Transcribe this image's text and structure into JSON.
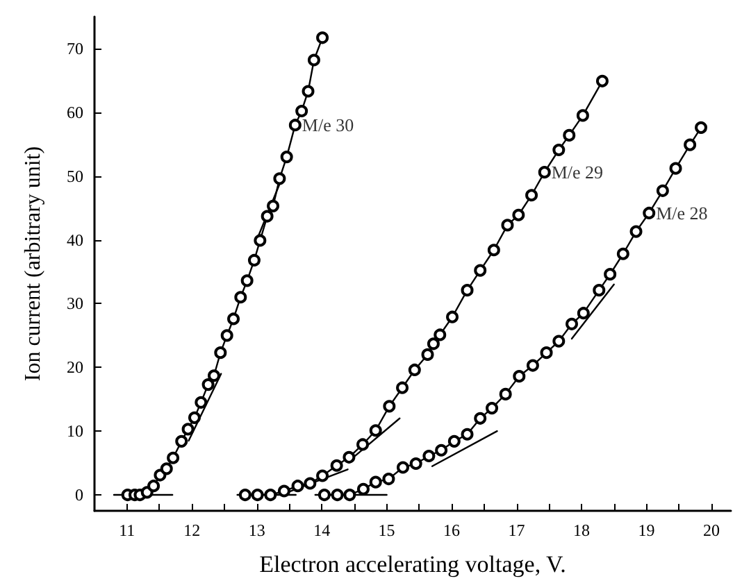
{
  "chart_data": {
    "type": "line",
    "xlabel": "Electron accelerating voltage, V.",
    "ylabel": "Ion current (arbitrary unit)",
    "xlim": [
      10.5,
      20.3
    ],
    "ylim": [
      -2.5,
      75
    ],
    "xticks": [
      11,
      {
        "value": 11.5,
        "label": null
      },
      12,
      {
        "value": 12.5,
        "label": null
      },
      13,
      {
        "value": 13.5,
        "label": null
      },
      14,
      {
        "value": 14.5,
        "label": null
      },
      15,
      {
        "value": 15.5,
        "label": null
      },
      16,
      {
        "value": 16.5,
        "label": null
      },
      17,
      {
        "value": 17.5,
        "label": null
      },
      18,
      {
        "value": 18.5,
        "label": null
      },
      19,
      {
        "value": 19.5,
        "label": null
      },
      20
    ],
    "yticks": [
      0,
      10,
      20,
      30,
      40,
      50,
      60,
      70
    ],
    "grid": false,
    "marker": "circle",
    "line_style": "solid",
    "series": [
      {
        "color": "#000000",
        "x": [
          11.01,
          11.12,
          11.2,
          11.31,
          11.41,
          11.51,
          11.61,
          11.71,
          11.84,
          11.94,
          12.04,
          12.14,
          12.25,
          12.34,
          12.44,
          12.54,
          12.64,
          12.75,
          12.85,
          12.96,
          13.05,
          13.16,
          13.25,
          13.35,
          13.46,
          13.59,
          13.69,
          13.79,
          13.88,
          14.01
        ],
        "values": [
          0,
          0,
          0,
          0.4,
          1.4,
          3.1,
          4.1,
          5.8,
          8.4,
          10.3,
          12.1,
          14.5,
          17.3,
          18.7,
          22.3,
          25.0,
          27.6,
          31.0,
          33.6,
          36.8,
          39.9,
          43.7,
          45.3,
          49.6,
          53.0,
          58.0,
          60.2,
          63.3,
          68.2,
          71.7
        ]
      },
      {
        "color": "#000000",
        "x": [
          12.82,
          13.01,
          13.21,
          13.42,
          13.63,
          13.82,
          14.01,
          14.23,
          14.42,
          14.63,
          14.83,
          15.04,
          15.24,
          15.43,
          15.63,
          15.72,
          15.82,
          16.01,
          16.24,
          16.44,
          16.65,
          16.86,
          17.03,
          17.23,
          17.43,
          17.65,
          17.81,
          18.02,
          18.32
        ],
        "values": [
          0,
          0,
          0,
          0.6,
          1.4,
          1.8,
          3.0,
          4.6,
          5.9,
          7.9,
          10.1,
          13.9,
          16.8,
          19.6,
          22.0,
          23.7,
          25.1,
          27.9,
          32.1,
          35.2,
          38.4,
          42.3,
          43.9,
          47.0,
          50.6,
          54.1,
          56.4,
          59.5,
          64.9
        ]
      },
      {
        "color": "#000000",
        "x": [
          14.04,
          14.24,
          14.43,
          14.64,
          14.83,
          15.03,
          15.25,
          15.45,
          15.65,
          15.84,
          16.04,
          16.24,
          16.44,
          16.62,
          16.83,
          17.04,
          17.25,
          17.46,
          17.65,
          17.85,
          18.03,
          18.27,
          18.44,
          18.64,
          18.84,
          19.04,
          19.25,
          19.45,
          19.67,
          19.84
        ],
        "values": [
          0,
          0,
          0,
          0.9,
          2.0,
          2.5,
          4.3,
          4.9,
          6.1,
          7.0,
          8.4,
          9.5,
          12.0,
          13.6,
          15.8,
          18.6,
          20.3,
          22.3,
          24.1,
          26.8,
          28.5,
          32.1,
          34.6,
          37.8,
          41.3,
          44.2,
          47.7,
          51.2,
          54.9,
          57.6
        ]
      },
      {
        "color": "#000000",
        "marker": "none",
        "x": [
          10.8,
          11.7
        ],
        "values": [
          0,
          0
        ]
      },
      {
        "color": "#000000",
        "marker": "none",
        "x": [
          11.95,
          12.45
        ],
        "values": [
          8.5,
          19
        ]
      },
      {
        "color": "#000000",
        "marker": "none",
        "x": [
          13.0,
          13.4
        ],
        "values": [
          40,
          50
        ]
      },
      {
        "color": "#000000",
        "marker": "none",
        "x": [
          12.7,
          13.6
        ],
        "values": [
          0,
          0
        ]
      },
      {
        "color": "#000000",
        "marker": "none",
        "x": [
          13.5,
          14.4
        ],
        "values": [
          0.5,
          4
        ]
      },
      {
        "color": "#000000",
        "marker": "none",
        "x": [
          14.5,
          15.2
        ],
        "values": [
          6,
          12
        ]
      },
      {
        "color": "#000000",
        "marker": "none",
        "x": [
          13.9,
          15.0
        ],
        "values": [
          0,
          0
        ]
      },
      {
        "color": "#000000",
        "marker": "none",
        "x": [
          15.7,
          16.7
        ],
        "values": [
          4.5,
          10
        ]
      },
      {
        "color": "#000000",
        "marker": "none",
        "x": [
          17.85,
          18.5
        ],
        "values": [
          24.5,
          33
        ]
      }
    ],
    "annotations": [
      "M/e 30",
      "M/e 29",
      "M/e 28"
    ]
  }
}
